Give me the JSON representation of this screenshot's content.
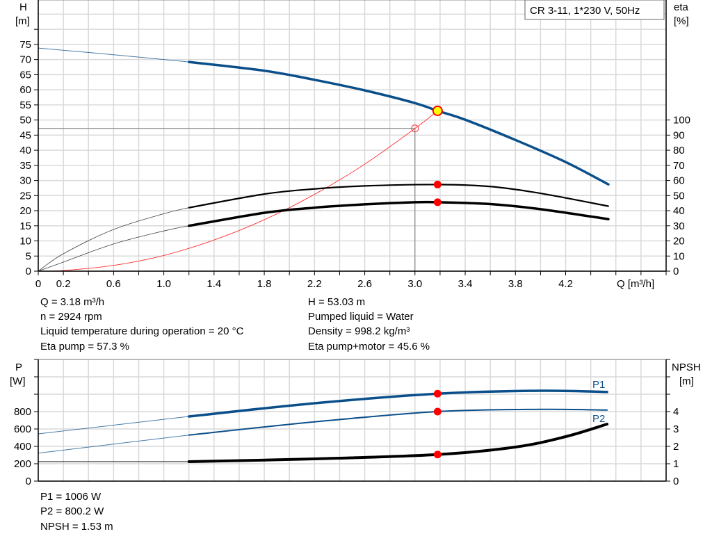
{
  "colors": {
    "head": "#0b4f8a",
    "eta": "#000000",
    "system": "#ff3030",
    "point": "#ff0000",
    "op_point_fill": "#ffff00",
    "grid": "#d9d9d9",
    "power": "#0b4f8a",
    "npsh": "#000000"
  },
  "chart_data": [
    {
      "type": "line",
      "title": "CR 3-11, 1*230 V, 50Hz",
      "xlabel": "Q [m³/h]",
      "ylabel": "H",
      "ylabel_unit": "[m]",
      "y2label": "eta",
      "y2label_unit": "[%]",
      "xlim": [
        0,
        5.0
      ],
      "ylim": [
        0,
        89.7
      ],
      "y2lim": [
        0,
        179.4
      ],
      "grid": true,
      "x_ticks": [
        "0",
        "0.2",
        "0.6",
        "1.0",
        "1.4",
        "1.8",
        "2.2",
        "2.6",
        "3.0",
        "3.4",
        "3.8",
        "4.2"
      ],
      "y_ticks": [
        "0",
        "5",
        "10",
        "15",
        "20",
        "25",
        "30",
        "35",
        "40",
        "45",
        "50",
        "55",
        "60",
        "65",
        "70",
        "75"
      ],
      "y2_ticks": [
        "0",
        "10",
        "20",
        "30",
        "40",
        "50",
        "60",
        "70",
        "80",
        "90",
        "100"
      ],
      "series": [
        {
          "key": "head",
          "axis": "left",
          "x": [
            0,
            0.6,
            1.2,
            1.8,
            2.2,
            2.6,
            3.0,
            3.18,
            3.4,
            3.8,
            4.2,
            4.54
          ],
          "y": [
            73.8,
            71.6,
            69.2,
            66.3,
            63.3,
            59.8,
            55.6,
            53.03,
            50.1,
            43.4,
            36.1,
            28.7
          ],
          "thick_from": 1.2
        },
        {
          "key": "eta_pump",
          "axis": "right",
          "x": [
            0,
            0.2,
            0.6,
            1.0,
            1.2,
            1.8,
            2.2,
            2.6,
            3.18,
            3.6,
            4.0,
            4.54
          ],
          "y": [
            0,
            11.5,
            27.6,
            38,
            42,
            51,
            54.4,
            56.4,
            57.3,
            56,
            51.5,
            43
          ],
          "thick_from": 1.2
        },
        {
          "key": "eta_pump_motor",
          "axis": "right",
          "x": [
            0,
            0.2,
            0.6,
            1.0,
            1.2,
            1.8,
            2.2,
            2.6,
            3.0,
            3.18,
            3.6,
            4.0,
            4.54
          ],
          "y": [
            0,
            6,
            18,
            26.6,
            30,
            38.6,
            42,
            44.2,
            45.6,
            45.6,
            44.4,
            41,
            34.4
          ],
          "thick_from": 1.2
        },
        {
          "key": "system",
          "axis": "left",
          "x": [
            0,
            0.2,
            0.6,
            1.0,
            1.4,
            1.8,
            2.2,
            2.6,
            3.0,
            3.18
          ],
          "y": [
            0,
            0.2,
            1.9,
            5.2,
            10.3,
            17,
            25.4,
            35.4,
            47.2,
            53.03
          ]
        }
      ],
      "operating_point": {
        "x": 3.18,
        "y": 53.03,
        "eta_pump": 57.3,
        "eta_pump_motor": 45.6
      },
      "reference_point": {
        "x": 3.0,
        "y": 47.2
      }
    },
    {
      "type": "line",
      "ylabel": "P",
      "ylabel_unit": "[W]",
      "y2label": "NPSH",
      "y2label_unit": "[m]",
      "xlim": [
        0,
        5.0
      ],
      "ylim": [
        0,
        1400
      ],
      "y2lim": [
        0,
        7
      ],
      "grid": true,
      "y_ticks": [
        "0",
        "200",
        "400",
        "600",
        "800"
      ],
      "y2_ticks": [
        "0",
        "1",
        "2",
        "3",
        "4"
      ],
      "series": [
        {
          "key": "P1",
          "name": "P1",
          "axis": "left",
          "x": [
            0,
            1.2,
            2.2,
            3.18,
            4.0,
            4.53
          ],
          "y": [
            544,
            744,
            896,
            1006,
            1040,
            1026
          ],
          "thick_from": 1.2
        },
        {
          "key": "P2",
          "name": "P2",
          "axis": "left",
          "x": [
            0,
            1.2,
            2.2,
            3.18,
            4.0,
            4.53
          ],
          "y": [
            322,
            530,
            682,
            800.2,
            826,
            818
          ],
          "thick_from": 1.2
        },
        {
          "key": "NPSH",
          "axis": "right",
          "x": [
            0,
            1.2,
            2.2,
            3.18,
            3.8,
            4.2,
            4.53
          ],
          "y": [
            1.12,
            1.12,
            1.28,
            1.53,
            1.96,
            2.56,
            3.28
          ],
          "thick_from": 1.2
        }
      ],
      "operating_point": {
        "x": 3.18,
        "P1": 1006,
        "P2": 800.2,
        "NPSH": 1.53
      }
    }
  ],
  "results": {
    "q": "Q = 3.18 m³/h",
    "n": "n = 2924 rpm",
    "temp": "Liquid temperature during operation = 20 °C",
    "eta_pump": "Eta pump = 57.3 %",
    "h": "H = 53.03 m",
    "liquid": "Pumped liquid = Water",
    "density": "Density = 998.2 kg/m³",
    "eta_pm": "Eta pump+motor = 45.6 %",
    "p1": "P1 = 1006 W",
    "p2": "P2 = 800.2 W",
    "npsh": "NPSH = 1.53 m"
  }
}
